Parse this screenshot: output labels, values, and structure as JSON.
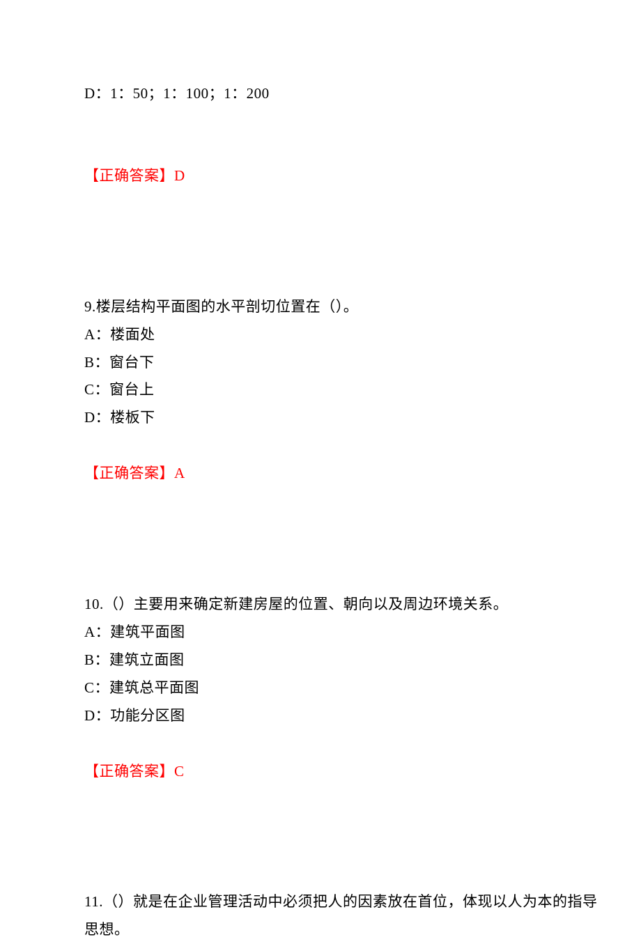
{
  "text_color": "#000000",
  "answer_color": "#ff0000",
  "background_color": "#ffffff",
  "font_family": "SimSun",
  "font_size_pt": 16,
  "q8": {
    "option_d": "D：1：50；1：100；1：200",
    "answer_label": "【正确答案】",
    "answer_value": "D"
  },
  "q9": {
    "stem": "9.楼层结构平面图的水平剖切位置在（）。",
    "option_a": "A：楼面处",
    "option_b": "B：窗台下",
    "option_c": "C：窗台上",
    "option_d": "D：楼板下",
    "answer_label": "【正确答案】",
    "answer_value": "A"
  },
  "q10": {
    "stem": "10.（）主要用来确定新建房屋的位置、朝向以及周边环境关系。",
    "option_a": "A：建筑平面图",
    "option_b": "B：建筑立面图",
    "option_c": "C：建筑总平面图",
    "option_d": "D：功能分区图",
    "answer_label": "【正确答案】",
    "answer_value": "C"
  },
  "q11": {
    "stem_line1": "11.（）就是在企业管理活动中必须把人的因素放在首位，体现以人为本的指导",
    "stem_line2": "思想。"
  }
}
